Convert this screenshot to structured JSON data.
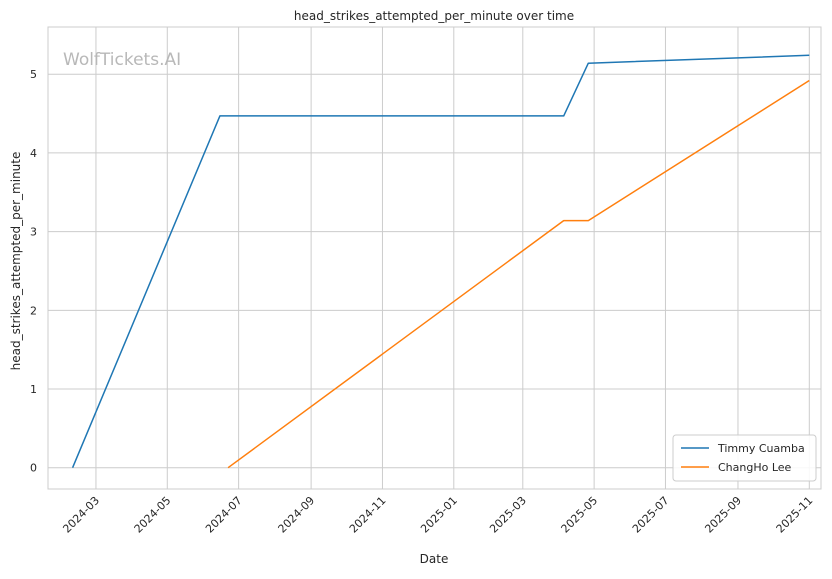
{
  "chart_data": {
    "type": "line",
    "title": "head_strikes_attempted_per_minute over time",
    "xlabel": "Date",
    "ylabel": "head_strikes_attempted_per_minute",
    "watermark": "WolfTickets.AI",
    "x_ticks": [
      "2024-03",
      "2024-05",
      "2024-07",
      "2024-09",
      "2024-11",
      "2025-01",
      "2025-03",
      "2025-05",
      "2025-07",
      "2025-09",
      "2025-11"
    ],
    "y_ticks": [
      0,
      1,
      2,
      3,
      4,
      5
    ],
    "xlim": [
      "2024-01-20",
      "2025-11-11"
    ],
    "ylim": [
      -0.27,
      5.6
    ],
    "grid": true,
    "legend_position": "lower-right",
    "series": [
      {
        "name": "Timmy Cuamba",
        "color": "#1f77b4",
        "points": [
          {
            "x": "2024-02-10",
            "y": 0.0
          },
          {
            "x": "2024-06-15",
            "y": 4.47
          },
          {
            "x": "2025-04-05",
            "y": 4.47
          },
          {
            "x": "2025-04-26",
            "y": 5.14
          },
          {
            "x": "2025-11-01",
            "y": 5.24
          }
        ]
      },
      {
        "name": "ChangHo Lee",
        "color": "#ff7f0e",
        "points": [
          {
            "x": "2024-06-22",
            "y": 0.0
          },
          {
            "x": "2025-04-05",
            "y": 3.14
          },
          {
            "x": "2025-04-26",
            "y": 3.14
          },
          {
            "x": "2025-11-01",
            "y": 4.92
          }
        ]
      }
    ]
  }
}
